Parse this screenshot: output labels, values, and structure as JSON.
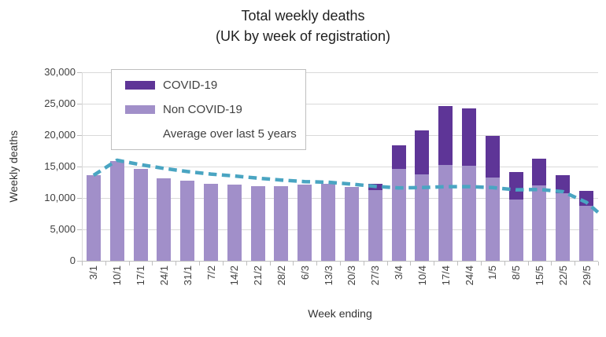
{
  "title": {
    "line1": "Total weekly deaths",
    "line2": "(UK by week of registration)"
  },
  "axes": {
    "y_title": "Weekly deaths",
    "x_title": "Week ending",
    "y_tick_labels": [
      "30,000",
      "25,000",
      "20,000",
      "15,000",
      "10,000",
      "5,000",
      "0"
    ]
  },
  "legend": {
    "items": [
      {
        "label": "COVID-19",
        "swatch": "bar",
        "color": "#5e3597"
      },
      {
        "label": "Non COVID-19",
        "swatch": "bar",
        "color": "#a18fc9"
      },
      {
        "label": "Average over last 5 years",
        "swatch": "dashed-line",
        "color": "#4aa5c2"
      }
    ]
  },
  "chart_data": {
    "type": "bar",
    "stacked": true,
    "title": "Total weekly deaths (UK by week of registration)",
    "xlabel": "Week ending",
    "ylabel": "Weekly deaths",
    "ylim": [
      0,
      30000
    ],
    "y_tick_step": 5000,
    "grid": "horizontal",
    "legend_position": "top-left-inside",
    "categories": [
      "3/1",
      "10/1",
      "17/1",
      "24/1",
      "31/1",
      "7/2",
      "14/2",
      "21/2",
      "28/2",
      "6/3",
      "13/3",
      "20/3",
      "27/3",
      "3/4",
      "10/4",
      "17/4",
      "24/4",
      "1/5",
      "8/5",
      "15/5",
      "22/5",
      "29/5"
    ],
    "series": [
      {
        "name": "Non COVID-19",
        "color": "#a18fc9",
        "values": [
          13600,
          15900,
          14600,
          13100,
          12800,
          12300,
          12100,
          11900,
          11900,
          12100,
          12300,
          11700,
          11250,
          14600,
          13700,
          15200,
          15100,
          13200,
          9800,
          12000,
          10800,
          8800
        ]
      },
      {
        "name": "COVID-19",
        "color": "#5e3597",
        "values": [
          0,
          0,
          0,
          0,
          0,
          0,
          0,
          0,
          0,
          0,
          0,
          0,
          1050,
          3800,
          7000,
          9400,
          9100,
          6700,
          4300,
          4200,
          2800,
          2300
        ]
      }
    ],
    "line_series": {
      "name": "Average over last 5 years",
      "color": "#4aa5c2",
      "style": "dashed",
      "values": [
        13600,
        16000,
        15300,
        14700,
        14200,
        13800,
        13500,
        13150,
        12850,
        12600,
        12500,
        12200,
        11850,
        11600,
        11650,
        11800,
        11800,
        11650,
        11300,
        11350,
        11000,
        9300
      ],
      "right_edge_value": 7700
    }
  }
}
